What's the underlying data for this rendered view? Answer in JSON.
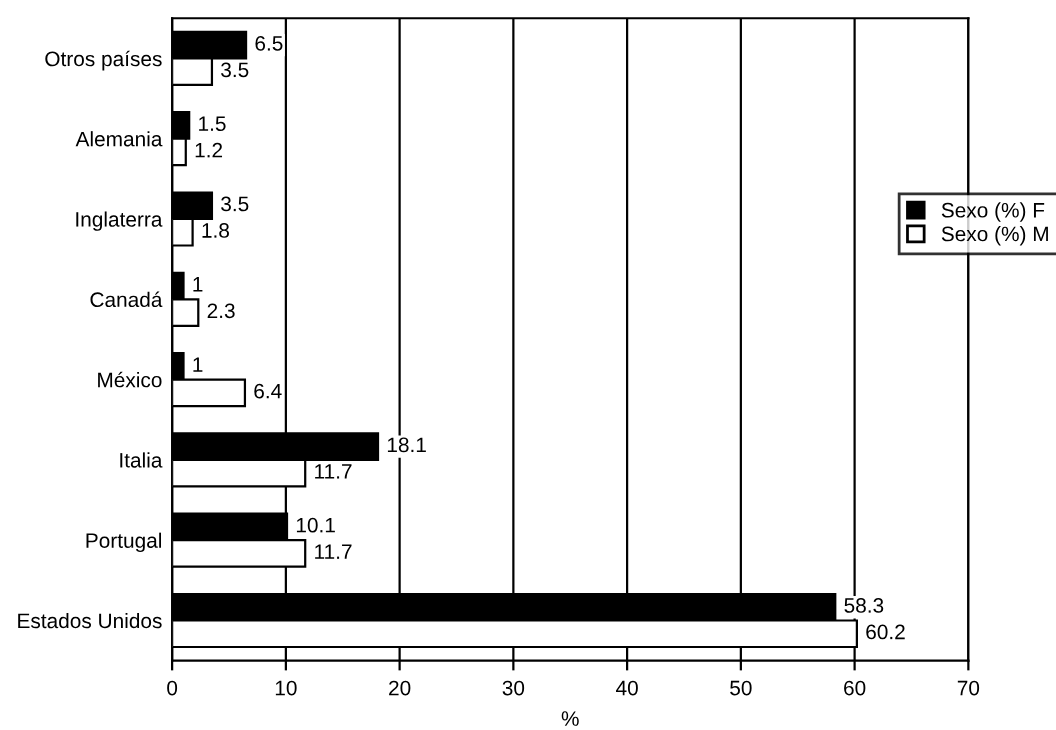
{
  "chart_data": {
    "type": "bar",
    "orientation": "horizontal",
    "xlabel": "%",
    "categories": [
      "Otros países",
      "Alemania",
      "Inglaterra",
      "Canadá",
      "México",
      "Italia",
      "Portugal",
      "Estados Unidos"
    ],
    "series": [
      {
        "name": "Sexo (%) F",
        "color": "#000000",
        "values": [
          6.5,
          1.5,
          3.5,
          1,
          1,
          18.1,
          10.1,
          58.3
        ]
      },
      {
        "name": "Sexo (%) M",
        "color": "#ffffff",
        "values": [
          3.5,
          1.2,
          1.8,
          2.3,
          6.4,
          11.7,
          11.7,
          60.2
        ]
      }
    ],
    "xlim": [
      0,
      70
    ],
    "xticks": [
      0,
      10,
      20,
      30,
      40,
      50,
      60,
      70
    ],
    "grid": "x",
    "legend": "right",
    "data_labels": true
  }
}
